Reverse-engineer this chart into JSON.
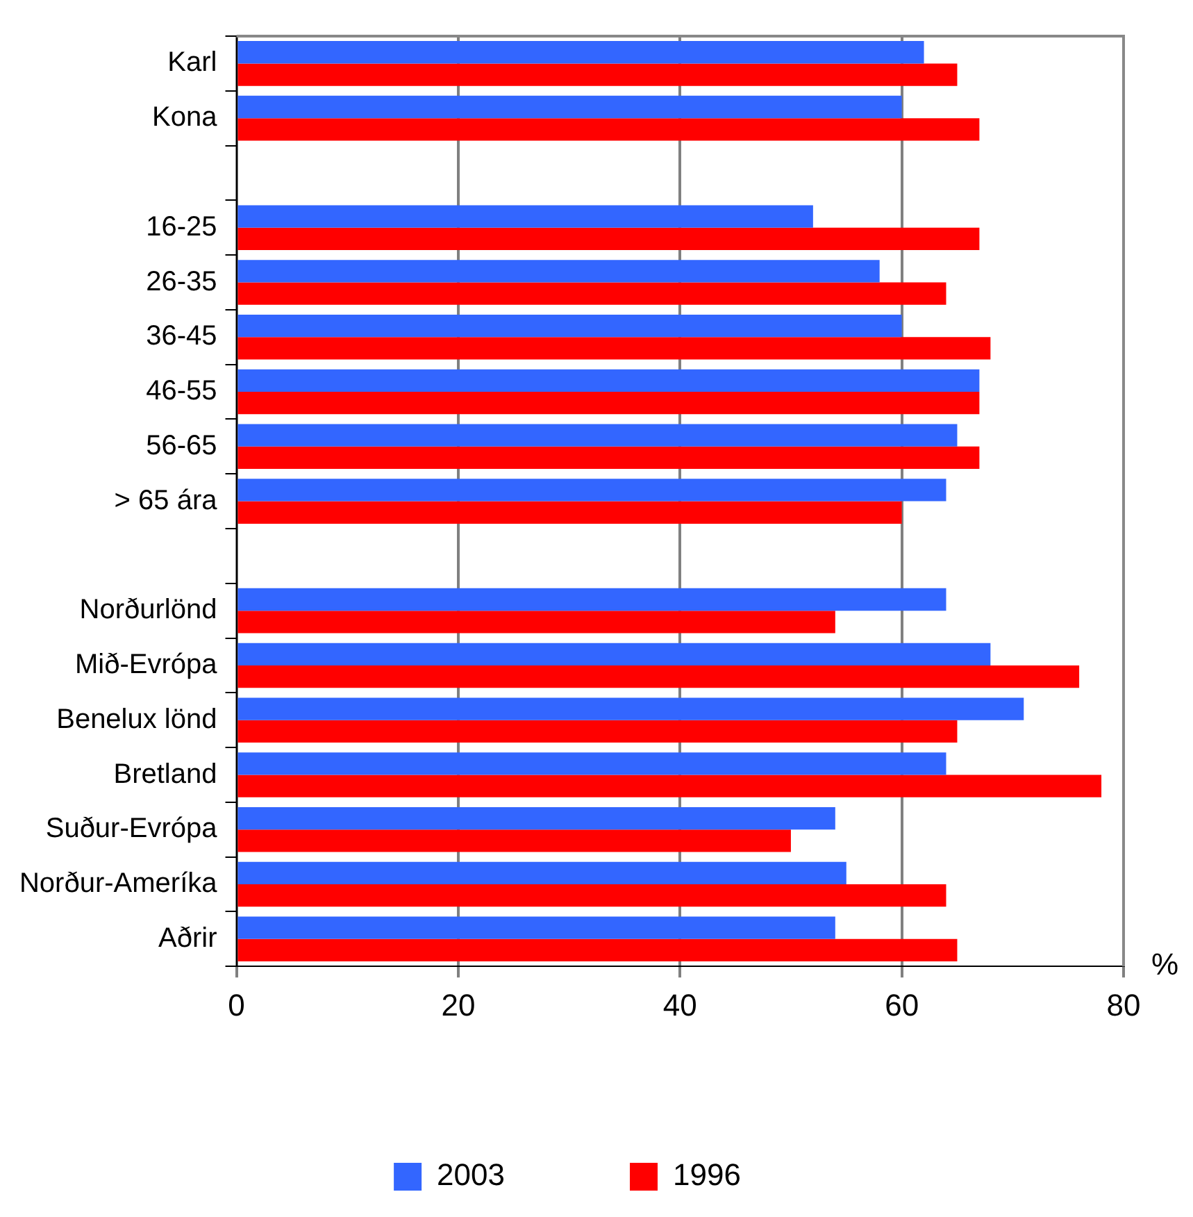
{
  "chart_data": {
    "type": "bar",
    "orientation": "horizontal",
    "xlabel": "%",
    "categories": [
      "Karl",
      "Kona",
      null,
      "16-25",
      "26-35",
      "36-45",
      "46-55",
      "56-65",
      "> 65 ára",
      null,
      "Norðurlönd",
      "Mið-Evrópa",
      "Benelux lönd",
      "Bretland",
      "Suður-Evrópa",
      "Norður-Ameríka",
      "Aðrir"
    ],
    "series": [
      {
        "name": "2003",
        "color": "#3366ff",
        "values": [
          62,
          60,
          null,
          52,
          58,
          60,
          67,
          65,
          64,
          null,
          64,
          68,
          71,
          64,
          54,
          55,
          54
        ]
      },
      {
        "name": "1996",
        "color": "#ff0000",
        "values": [
          65,
          67,
          null,
          67,
          64,
          68,
          67,
          67,
          60,
          null,
          54,
          76,
          65,
          78,
          50,
          64,
          65
        ]
      }
    ],
    "xlim": [
      0,
      80
    ],
    "xticks": [
      0,
      20,
      40,
      60,
      80
    ],
    "grid": "x",
    "legend": "bottom"
  }
}
